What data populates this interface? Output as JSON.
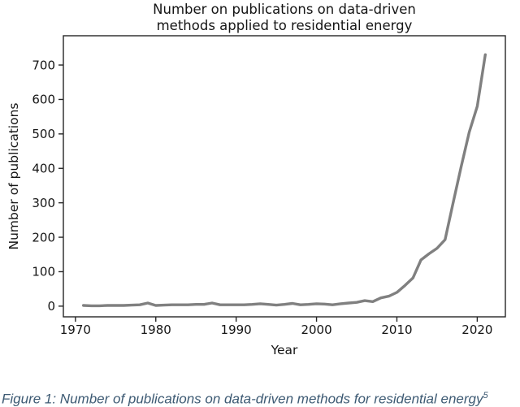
{
  "title": {
    "line1": "Number on publications on data-driven",
    "line2": "methods applied to residential energy"
  },
  "chart_data": {
    "type": "line",
    "title": "Number on publications on data-driven methods applied to residential energy",
    "xlabel": "Year",
    "ylabel": "Number of publications",
    "x": [
      1971,
      1972,
      1973,
      1974,
      1975,
      1976,
      1977,
      1978,
      1979,
      1980,
      1981,
      1982,
      1983,
      1984,
      1985,
      1986,
      1987,
      1988,
      1989,
      1990,
      1991,
      1992,
      1993,
      1994,
      1995,
      1996,
      1997,
      1998,
      1999,
      2000,
      2001,
      2002,
      2003,
      2004,
      2005,
      2006,
      2007,
      2008,
      2009,
      2010,
      2011,
      2012,
      2013,
      2014,
      2015,
      2016,
      2017,
      2018,
      2019,
      2020,
      2021
    ],
    "values": [
      2,
      1,
      1,
      2,
      2,
      2,
      3,
      4,
      9,
      2,
      3,
      4,
      4,
      4,
      5,
      5,
      9,
      4,
      4,
      4,
      4,
      5,
      7,
      5,
      3,
      5,
      8,
      4,
      5,
      7,
      6,
      4,
      7,
      9,
      11,
      16,
      13,
      24,
      29,
      40,
      60,
      82,
      134,
      152,
      168,
      193,
      300,
      405,
      505,
      580,
      730
    ],
    "xlim": [
      1968.5,
      2023.5
    ],
    "ylim": [
      -31,
      785
    ],
    "xticks": [
      1970,
      1980,
      1990,
      2000,
      2010,
      2020
    ],
    "yticks": [
      0,
      100,
      200,
      300,
      400,
      500,
      600,
      700
    ],
    "grid": false,
    "legend_position": "none",
    "line_color": "#808080",
    "axis_color": "#262626",
    "tick_label_color": "#151515"
  },
  "caption": {
    "text": "Figure 1: Number of publications on data-driven methods for residential energy",
    "superscript": "5",
    "color": "#3d5a73"
  }
}
